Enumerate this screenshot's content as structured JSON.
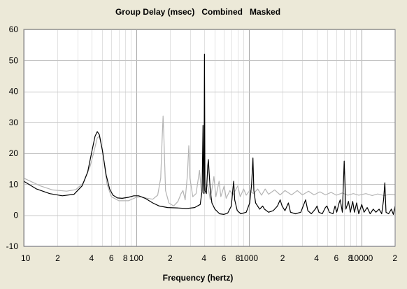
{
  "chart_data": {
    "type": "line",
    "title": "Group Delay (msec)   Combined   Masked",
    "xlabel": "Frequency (hertz)",
    "ylabel": "",
    "x_scale": "log",
    "xlim": [
      10,
      20000
    ],
    "ylim": [
      -10,
      60
    ],
    "grid": true,
    "y_ticks": [
      -10,
      0,
      10,
      20,
      30,
      40,
      50,
      60
    ],
    "x_ticks": [
      {
        "value": 10,
        "label": "10"
      },
      {
        "value": 20,
        "label": "2"
      },
      {
        "value": 40,
        "label": "4"
      },
      {
        "value": 60,
        "label": "6"
      },
      {
        "value": 80,
        "label": "8"
      },
      {
        "value": 100,
        "label": "100"
      },
      {
        "value": 200,
        "label": "2"
      },
      {
        "value": 400,
        "label": "4"
      },
      {
        "value": 600,
        "label": "6"
      },
      {
        "value": 800,
        "label": "8"
      },
      {
        "value": 1000,
        "label": "1000"
      },
      {
        "value": 2000,
        "label": "2"
      },
      {
        "value": 4000,
        "label": "4"
      },
      {
        "value": 6000,
        "label": "6"
      },
      {
        "value": 8000,
        "label": "8"
      },
      {
        "value": 10000,
        "label": "10000"
      },
      {
        "value": 20000,
        "label": "2"
      }
    ],
    "series": [
      {
        "color": "#000000",
        "points": [
          [
            10,
            11
          ],
          [
            13,
            8.5
          ],
          [
            17,
            7
          ],
          [
            22,
            6.3
          ],
          [
            28,
            6.8
          ],
          [
            33,
            9.5
          ],
          [
            37,
            14
          ],
          [
            40,
            20
          ],
          [
            43,
            25.5
          ],
          [
            45,
            27
          ],
          [
            47,
            26
          ],
          [
            50,
            21
          ],
          [
            54,
            13
          ],
          [
            58,
            8.5
          ],
          [
            62,
            6.5
          ],
          [
            68,
            5.6
          ],
          [
            75,
            5.5
          ],
          [
            85,
            5.8
          ],
          [
            95,
            6.3
          ],
          [
            105,
            6.3
          ],
          [
            120,
            5.5
          ],
          [
            140,
            4
          ],
          [
            160,
            3
          ],
          [
            190,
            2.5
          ],
          [
            230,
            2.4
          ],
          [
            280,
            2.2
          ],
          [
            330,
            2.5
          ],
          [
            370,
            3.5
          ],
          [
            385,
            8
          ],
          [
            392,
            29
          ],
          [
            396,
            10
          ],
          [
            400,
            7
          ],
          [
            404,
            52
          ],
          [
            408,
            8
          ],
          [
            420,
            7
          ],
          [
            432,
            16
          ],
          [
            438,
            18
          ],
          [
            444,
            14
          ],
          [
            455,
            8
          ],
          [
            470,
            4
          ],
          [
            500,
            2
          ],
          [
            550,
            0.5
          ],
          [
            600,
            0.3
          ],
          [
            650,
            0.7
          ],
          [
            700,
            3
          ],
          [
            720,
            8
          ],
          [
            735,
            11
          ],
          [
            750,
            5
          ],
          [
            790,
            1.5
          ],
          [
            850,
            0.5
          ],
          [
            950,
            1
          ],
          [
            1020,
            4
          ],
          [
            1060,
            10
          ],
          [
            1090,
            18.5
          ],
          [
            1110,
            8
          ],
          [
            1150,
            4
          ],
          [
            1250,
            2
          ],
          [
            1330,
            3
          ],
          [
            1380,
            2
          ],
          [
            1500,
            1
          ],
          [
            1650,
            1.5
          ],
          [
            1800,
            3
          ],
          [
            1900,
            5
          ],
          [
            1980,
            3
          ],
          [
            2100,
            1.5
          ],
          [
            2250,
            4
          ],
          [
            2350,
            1
          ],
          [
            2600,
            0.5
          ],
          [
            2900,
            1
          ],
          [
            3050,
            3
          ],
          [
            3200,
            5
          ],
          [
            3350,
            1.5
          ],
          [
            3600,
            0.5
          ],
          [
            3900,
            2
          ],
          [
            4050,
            3
          ],
          [
            4200,
            1
          ],
          [
            4500,
            0.5
          ],
          [
            4800,
            2.5
          ],
          [
            4950,
            3
          ],
          [
            5200,
            1
          ],
          [
            5600,
            0.5
          ],
          [
            5850,
            3
          ],
          [
            6050,
            1
          ],
          [
            6350,
            4
          ],
          [
            6500,
            5
          ],
          [
            6800,
            1
          ],
          [
            7050,
            17.5
          ],
          [
            7300,
            2
          ],
          [
            7700,
            4.5
          ],
          [
            8000,
            1
          ],
          [
            8400,
            4.5
          ],
          [
            8700,
            1
          ],
          [
            9100,
            4
          ],
          [
            9500,
            0.5
          ],
          [
            10100,
            3.5
          ],
          [
            10600,
            1
          ],
          [
            11300,
            2.5
          ],
          [
            12000,
            0.5
          ],
          [
            12800,
            2
          ],
          [
            13500,
            1
          ],
          [
            14400,
            2
          ],
          [
            15200,
            0.5
          ],
          [
            15800,
            5
          ],
          [
            16200,
            10.5
          ],
          [
            16600,
            1
          ],
          [
            17500,
            0.5
          ],
          [
            18500,
            2
          ],
          [
            19300,
            0.3
          ],
          [
            20000,
            3
          ]
        ]
      },
      {
        "color": "#b4b4b4",
        "points": [
          [
            10,
            12
          ],
          [
            14,
            9.5
          ],
          [
            18,
            8.2
          ],
          [
            24,
            7.8
          ],
          [
            29,
            8.3
          ],
          [
            34,
            10.5
          ],
          [
            39,
            16
          ],
          [
            42,
            20.5
          ],
          [
            45,
            25
          ],
          [
            47,
            25.5
          ],
          [
            50,
            21
          ],
          [
            55,
            10
          ],
          [
            60,
            6
          ],
          [
            70,
            4.7
          ],
          [
            85,
            4.7
          ],
          [
            100,
            5.8
          ],
          [
            110,
            6
          ],
          [
            125,
            5.5
          ],
          [
            140,
            5.2
          ],
          [
            155,
            6.5
          ],
          [
            165,
            12
          ],
          [
            170,
            25
          ],
          [
            173,
            32
          ],
          [
            176,
            25
          ],
          [
            182,
            8
          ],
          [
            195,
            4
          ],
          [
            215,
            3
          ],
          [
            235,
            4.5
          ],
          [
            250,
            7
          ],
          [
            260,
            8
          ],
          [
            272,
            5
          ],
          [
            285,
            13
          ],
          [
            293,
            22.5
          ],
          [
            300,
            12
          ],
          [
            318,
            6
          ],
          [
            340,
            7
          ],
          [
            365,
            14.5
          ],
          [
            378,
            8
          ],
          [
            400,
            7
          ],
          [
            430,
            10
          ],
          [
            455,
            5
          ],
          [
            490,
            12.5
          ],
          [
            510,
            6
          ],
          [
            545,
            11
          ],
          [
            565,
            6
          ],
          [
            605,
            9.5
          ],
          [
            630,
            5.5
          ],
          [
            680,
            8
          ],
          [
            720,
            6.5
          ],
          [
            800,
            9.5
          ],
          [
            840,
            6
          ],
          [
            900,
            8.5
          ],
          [
            950,
            6.5
          ],
          [
            1020,
            8
          ],
          [
            1100,
            7
          ],
          [
            1200,
            8.5
          ],
          [
            1300,
            6.5
          ],
          [
            1400,
            8.5
          ],
          [
            1500,
            6.8
          ],
          [
            1700,
            8.2
          ],
          [
            1900,
            6.6
          ],
          [
            2100,
            8
          ],
          [
            2400,
            6.6
          ],
          [
            2700,
            8
          ],
          [
            3000,
            6.6
          ],
          [
            3400,
            7.8
          ],
          [
            3800,
            6.6
          ],
          [
            4300,
            7.6
          ],
          [
            4800,
            6.6
          ],
          [
            5400,
            7.4
          ],
          [
            6000,
            6.5
          ],
          [
            6800,
            7.2
          ],
          [
            7600,
            6.5
          ],
          [
            8500,
            7
          ],
          [
            9500,
            6.5
          ],
          [
            11000,
            7
          ],
          [
            12500,
            6.4
          ],
          [
            14000,
            6.9
          ],
          [
            16000,
            6.4
          ],
          [
            18000,
            6.8
          ],
          [
            20000,
            6.6
          ]
        ]
      }
    ]
  }
}
